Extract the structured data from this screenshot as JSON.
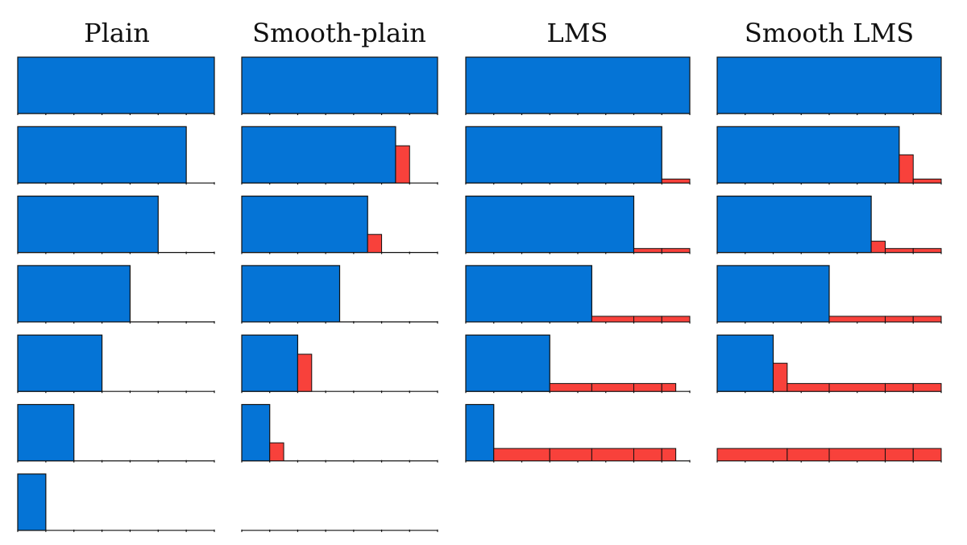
{
  "colors": {
    "blue": "#0574D6",
    "red": "#F8413B",
    "axis": "#111111"
  },
  "chart_data": [
    {
      "type": "bar",
      "title": "Plain",
      "x_max": 7,
      "y_max": 1,
      "panels": [
        {
          "blue": [
            [
              0,
              7,
              1
            ]
          ],
          "red": []
        },
        {
          "blue": [
            [
              0,
              6,
              1
            ]
          ],
          "red": []
        },
        {
          "blue": [
            [
              0,
              5,
              1
            ]
          ],
          "red": []
        },
        {
          "blue": [
            [
              0,
              4,
              1
            ]
          ],
          "red": []
        },
        {
          "blue": [
            [
              0,
              3,
              1
            ]
          ],
          "red": []
        },
        {
          "blue": [
            [
              0,
              2,
              1
            ]
          ],
          "red": []
        },
        {
          "blue": [
            [
              0,
              1,
              1
            ]
          ],
          "red": []
        }
      ]
    },
    {
      "type": "bar",
      "title": "Smooth-plain",
      "x_max": 7,
      "y_max": 1,
      "panels": [
        {
          "blue": [
            [
              0,
              7,
              1
            ]
          ],
          "red": []
        },
        {
          "blue": [
            [
              0,
              5.5,
              1
            ]
          ],
          "red": [
            [
              5.5,
              6,
              0.66
            ]
          ]
        },
        {
          "blue": [
            [
              0,
              4.5,
              1
            ]
          ],
          "red": [
            [
              4.5,
              5,
              0.32
            ]
          ]
        },
        {
          "blue": [
            [
              0,
              3.5,
              1
            ]
          ],
          "red": []
        },
        {
          "blue": [
            [
              0,
              2,
              1
            ]
          ],
          "red": [
            [
              2,
              2.5,
              0.66
            ]
          ]
        },
        {
          "blue": [
            [
              0,
              1,
              1
            ]
          ],
          "red": [
            [
              1,
              1.5,
              0.32
            ]
          ]
        },
        {
          "blue": [],
          "red": []
        }
      ]
    },
    {
      "type": "bar",
      "title": "LMS",
      "x_max": 8,
      "y_max": 1,
      "panels": [
        {
          "blue": [
            [
              0,
              8,
              1
            ]
          ],
          "red": []
        },
        {
          "blue": [
            [
              0,
              7,
              1
            ]
          ],
          "red": [
            [
              7,
              8,
              0.07
            ]
          ]
        },
        {
          "blue": [
            [
              0,
              6,
              1
            ]
          ],
          "red": [
            [
              6,
              7,
              0.07
            ],
            [
              7,
              8,
              0.07
            ]
          ]
        },
        {
          "blue": [
            [
              0,
              4.5,
              1
            ]
          ],
          "red": [
            [
              4.5,
              6,
              0.1
            ],
            [
              6,
              7,
              0.1
            ],
            [
              7,
              8,
              0.1
            ]
          ]
        },
        {
          "blue": [
            [
              0,
              3,
              1
            ]
          ],
          "red": [
            [
              3,
              4.5,
              0.14
            ],
            [
              4.5,
              6,
              0.14
            ],
            [
              6,
              7,
              0.14
            ],
            [
              7,
              7.5,
              0.14
            ]
          ]
        },
        {
          "blue": [
            [
              0,
              1,
              1
            ]
          ],
          "red": [
            [
              1,
              3,
              0.22
            ],
            [
              3,
              4.5,
              0.22
            ],
            [
              4.5,
              6,
              0.22
            ],
            [
              6,
              7,
              0.22
            ],
            [
              7,
              7.5,
              0.22
            ]
          ]
        }
      ]
    },
    {
      "type": "bar",
      "title": "Smooth LMS",
      "x_max": 8,
      "y_max": 1,
      "panels": [
        {
          "blue": [
            [
              0,
              8,
              1
            ]
          ],
          "red": []
        },
        {
          "blue": [
            [
              0,
              6.5,
              1
            ]
          ],
          "red": [
            [
              6.5,
              7,
              0.5
            ],
            [
              7,
              8,
              0.07
            ]
          ]
        },
        {
          "blue": [
            [
              0,
              5.5,
              1
            ]
          ],
          "red": [
            [
              5.5,
              6,
              0.2
            ],
            [
              6,
              7,
              0.07
            ],
            [
              7,
              8,
              0.07
            ]
          ]
        },
        {
          "blue": [
            [
              0,
              4,
              1
            ]
          ],
          "red": [
            [
              4,
              6,
              0.1
            ],
            [
              6,
              7,
              0.1
            ],
            [
              7,
              8,
              0.1
            ]
          ]
        },
        {
          "blue": [
            [
              0,
              2,
              1
            ]
          ],
          "red": [
            [
              2,
              2.5,
              0.5
            ],
            [
              2.5,
              4,
              0.14
            ],
            [
              4,
              6,
              0.14
            ],
            [
              6,
              7,
              0.14
            ],
            [
              7,
              8,
              0.14
            ]
          ]
        },
        {
          "blue": [],
          "red": [
            [
              0,
              2.5,
              0.22
            ],
            [
              2.5,
              4,
              0.22
            ],
            [
              4,
              6,
              0.22
            ],
            [
              6,
              7,
              0.22
            ],
            [
              7,
              8,
              0.22
            ]
          ]
        }
      ]
    }
  ]
}
